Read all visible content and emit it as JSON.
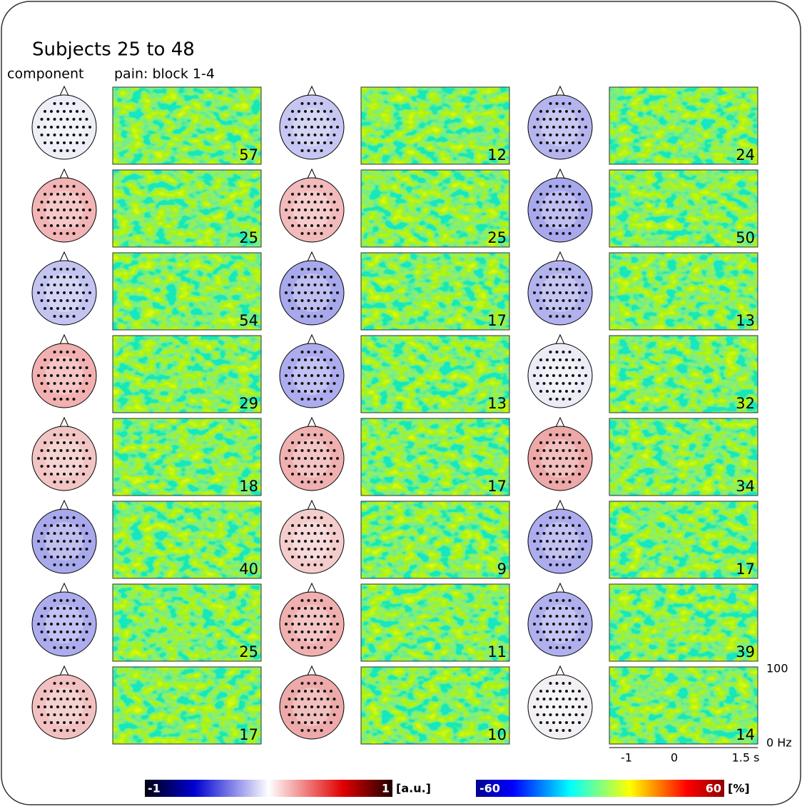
{
  "title": "Subjects 25 to 48",
  "column_headers": [
    "component",
    "pain: block 1-4"
  ],
  "panels": [
    {
      "count": 57,
      "head_color": "#eeeef8"
    },
    {
      "count": 12,
      "head_color": "#c6c6f2"
    },
    {
      "count": 24,
      "head_color": "#b4b4ee"
    },
    {
      "count": 25,
      "head_color": "#f2b4b4"
    },
    {
      "count": 25,
      "head_color": "#f2baba"
    },
    {
      "count": 50,
      "head_color": "#a8a8ec"
    },
    {
      "count": 54,
      "head_color": "#c4c4f2"
    },
    {
      "count": 17,
      "head_color": "#a8a8ec"
    },
    {
      "count": 13,
      "head_color": "#b2b2ee"
    },
    {
      "count": 29,
      "head_color": "#f2b0b0"
    },
    {
      "count": 13,
      "head_color": "#acacee"
    },
    {
      "count": 32,
      "head_color": "#ececf6"
    },
    {
      "count": 18,
      "head_color": "#f2c4c4"
    },
    {
      "count": 17,
      "head_color": "#f0b0b0"
    },
    {
      "count": 34,
      "head_color": "#eea8a8"
    },
    {
      "count": 40,
      "head_color": "#a8a8ec"
    },
    {
      "count": 9,
      "head_color": "#f4cccc"
    },
    {
      "count": 17,
      "head_color": "#acacee"
    },
    {
      "count": 25,
      "head_color": "#acacee"
    },
    {
      "count": 11,
      "head_color": "#f0b0b0"
    },
    {
      "count": 39,
      "head_color": "#b0b0ee"
    },
    {
      "count": 17,
      "head_color": "#f2c0c0"
    },
    {
      "count": 10,
      "head_color": "#eeaaaa"
    },
    {
      "count": 14,
      "head_color": "#f2f0f4"
    }
  ],
  "x_axis": {
    "ticks": [
      "-1",
      "0",
      "1.5 s"
    ]
  },
  "y_axis": {
    "ticks": [
      "100",
      "0 Hz"
    ]
  },
  "colorbars": [
    {
      "min": "-1",
      "max": "1",
      "unit": "[a.u.]"
    },
    {
      "min": "-60",
      "max": "60",
      "unit": "[%]"
    }
  ]
}
